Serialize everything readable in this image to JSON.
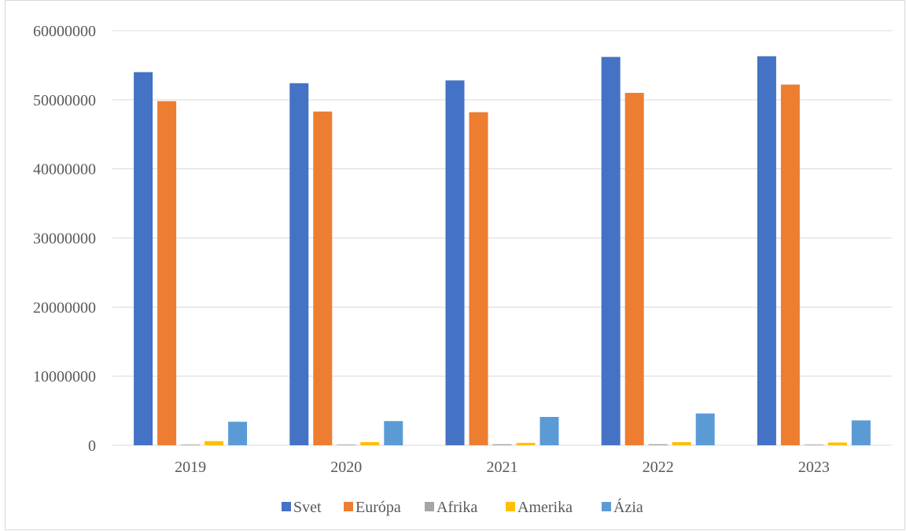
{
  "chart_data": {
    "type": "bar",
    "title": "",
    "xlabel": "",
    "ylabel": "",
    "categories": [
      "2019",
      "2020",
      "2021",
      "2022",
      "2023"
    ],
    "ylim": [
      0,
      60000000
    ],
    "yticks": [
      "0",
      "10000000",
      "20000000",
      "30000000",
      "40000000",
      "50000000",
      "60000000"
    ],
    "grid": true,
    "legend_position": "bottom",
    "series": [
      {
        "name": "Svet",
        "color": "#4472C4",
        "values": [
          54000000,
          52400000,
          52800000,
          56200000,
          56300000
        ]
      },
      {
        "name": "Európa",
        "color": "#ED7D31",
        "values": [
          49800000,
          48300000,
          48200000,
          51000000,
          52200000
        ]
      },
      {
        "name": "Afrika",
        "color": "#A5A5A5",
        "values": [
          100000,
          100000,
          150000,
          150000,
          100000
        ]
      },
      {
        "name": "Amerika",
        "color": "#FFC000",
        "values": [
          600000,
          450000,
          350000,
          450000,
          400000
        ]
      },
      {
        "name": "Ázia",
        "color": "#5B9BD5",
        "values": [
          3400000,
          3500000,
          4100000,
          4600000,
          3600000
        ]
      }
    ]
  }
}
